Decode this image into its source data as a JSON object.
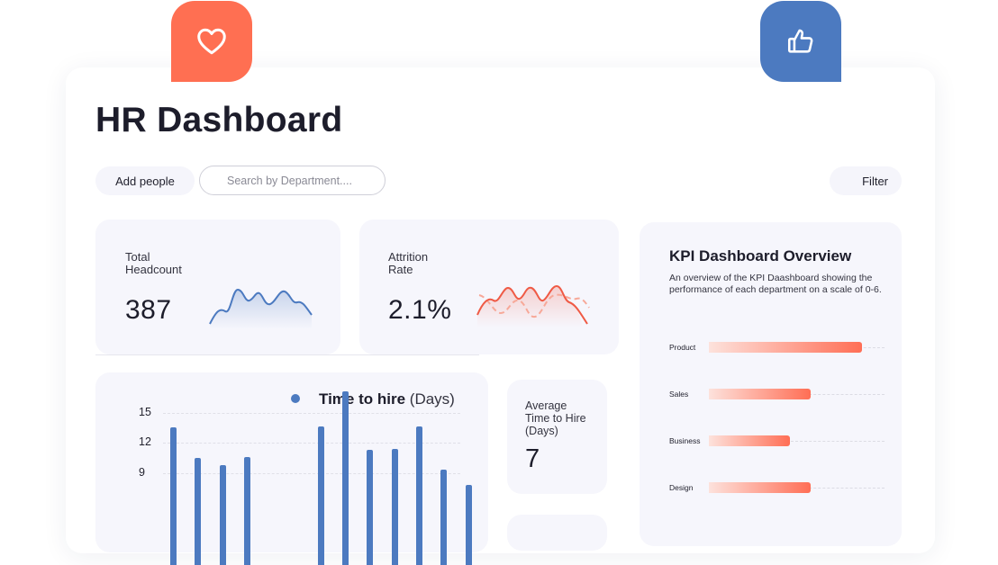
{
  "header": {
    "title": "HR Dashboard"
  },
  "toolbar": {
    "add_people_label": "Add people",
    "search_placeholder": "Search by Department....",
    "filter_label": "Filter"
  },
  "badges": [
    {
      "icon": "heart-icon",
      "color": "#ff6f52"
    },
    {
      "icon": "thumbs-up-icon",
      "color": "#4c7ac0"
    }
  ],
  "cards": {
    "headcount": {
      "label_line1": "Total",
      "label_line2": "Headcount",
      "value": "387",
      "sparkline_color": "#4c7ac0"
    },
    "attrition": {
      "label_line1": "Attrition",
      "label_line2": "Rate",
      "value": "2.1%",
      "sparkline_color": "#ef5a45"
    },
    "avg_hire": {
      "label_line1": "Average",
      "label_line2": "Time to Hire",
      "label_line3": "(Days)",
      "value": "7"
    }
  },
  "kpi": {
    "title": "KPI Dashboard Overview",
    "description": "An overview of the KPI Daashboard showing the performance of each department on a scale of 0-6.",
    "scale_max": 6,
    "departments": [
      {
        "name": "Product",
        "value": 5.1
      },
      {
        "name": "Sales",
        "value": 3.4
      },
      {
        "name": "Business",
        "value": 2.7
      },
      {
        "name": "Design",
        "value": 3.4
      }
    ]
  },
  "chart_data": {
    "type": "bar",
    "title": "Time to hire",
    "title_unit": "(Days)",
    "series": [
      {
        "name": "Time to hire",
        "color": "#4c7ac0",
        "values": [
          13.5,
          10.5,
          9.8,
          10.6,
          0,
          0,
          13.6,
          17.1,
          11.3,
          11.4,
          13.6,
          9.4,
          7.9
        ]
      }
    ],
    "y_ticks": [
      "15",
      "12",
      "9"
    ],
    "ylim": [
      0,
      16
    ],
    "grid": true
  }
}
